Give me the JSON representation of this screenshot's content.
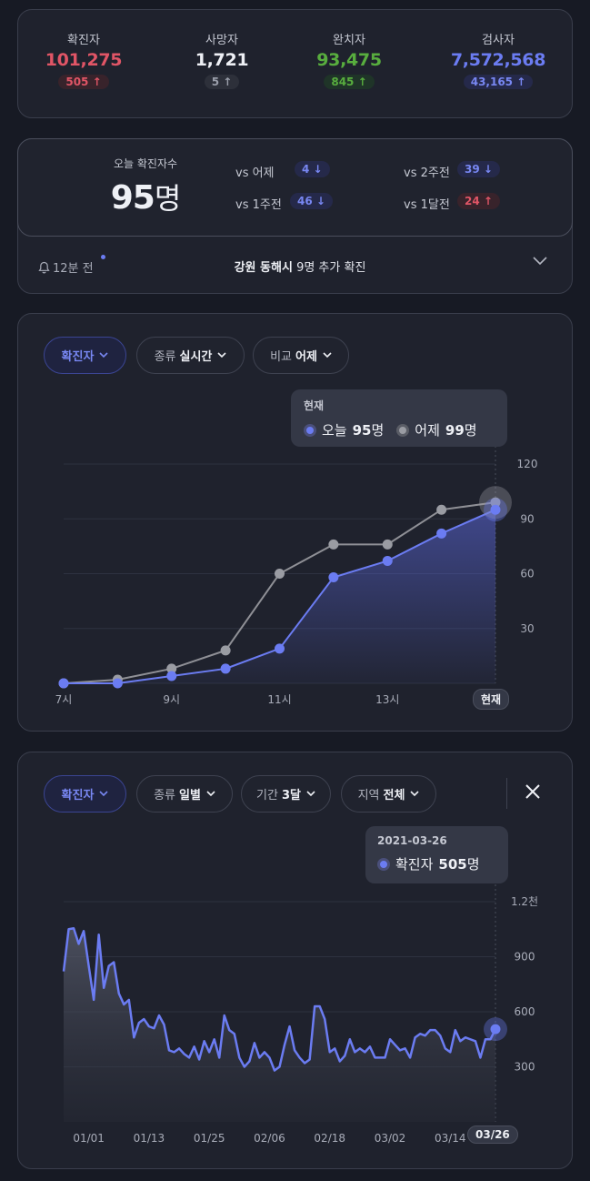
{
  "stats": [
    {
      "label": "확진자",
      "value": "101,275",
      "delta": "505",
      "tone": "red"
    },
    {
      "label": "사망자",
      "value": "1,721",
      "delta": "5",
      "tone": "gray"
    },
    {
      "label": "완치자",
      "value": "93,475",
      "delta": "845",
      "tone": "green"
    },
    {
      "label": "검사자",
      "value": "7,572,568",
      "delta": "43,165",
      "tone": "blue"
    }
  ],
  "today": {
    "label": "오늘 확진자수",
    "count": "95",
    "unit": "명",
    "comparisons": [
      {
        "label": "vs 어제",
        "value": "4",
        "direction": "down"
      },
      {
        "label": "vs 2주전",
        "value": "39",
        "direction": "down"
      },
      {
        "label": "vs 1주전",
        "value": "46",
        "direction": "down"
      },
      {
        "label": "vs 1달전",
        "value": "24",
        "direction": "up"
      }
    ],
    "news_time": "12분 전",
    "news_region": "강원 동해시",
    "news_text": "9명 추가 확진"
  },
  "hourly": {
    "filters": [
      {
        "prefix": "",
        "value": "확진자",
        "active": true
      },
      {
        "prefix": "종류",
        "value": "실시간",
        "active": false
      },
      {
        "prefix": "비교",
        "value": "어제",
        "active": false
      }
    ],
    "tooltip": {
      "title": "현재",
      "today_label": "오늘",
      "today_value": "95",
      "today_unit": "명",
      "yesterday_label": "어제",
      "yesterday_value": "99",
      "yesterday_unit": "명"
    },
    "current_label": "현재"
  },
  "daily": {
    "filters": [
      {
        "prefix": "",
        "value": "확진자",
        "active": true
      },
      {
        "prefix": "종류",
        "value": "일별",
        "active": false
      },
      {
        "prefix": "기간",
        "value": "3달",
        "active": false
      },
      {
        "prefix": "지역",
        "value": "전체",
        "active": false
      }
    ],
    "tooltip": {
      "title": "2021-03-26",
      "label": "확진자",
      "value": "505",
      "unit": "명"
    },
    "current_label": "03/26"
  },
  "chart_data": [
    {
      "type": "line",
      "x_ticks": [
        "7시",
        "9시",
        "11시",
        "13시"
      ],
      "x": [
        7,
        8,
        9,
        10,
        11,
        12,
        13,
        14,
        15
      ],
      "y_ticks": [
        "120",
        "90",
        "60",
        "30"
      ],
      "ylim": [
        0,
        120
      ],
      "series": [
        {
          "name": "오늘",
          "values": [
            0,
            0,
            4,
            8,
            19,
            58,
            67,
            82,
            95
          ]
        },
        {
          "name": "어제",
          "values": [
            0,
            2,
            8,
            18,
            60,
            76,
            76,
            95,
            99
          ]
        }
      ],
      "colors": {
        "today": "#6b7cf2",
        "yesterday": "#8f9096"
      }
    },
    {
      "type": "area",
      "x_ticks": [
        "01/01",
        "01/13",
        "01/25",
        "02/06",
        "02/18",
        "03/02",
        "03/14"
      ],
      "y_ticks": [
        "1.2천",
        "900",
        "600",
        "300"
      ],
      "ylim": [
        0,
        1200
      ],
      "series": [
        {
          "name": "확진자",
          "values": [
            820,
            1050,
            1055,
            970,
            1040,
            850,
            665,
            1020,
            730,
            850,
            870,
            700,
            640,
            665,
            460,
            540,
            560,
            520,
            510,
            580,
            530,
            390,
            380,
            400,
            370,
            350,
            410,
            340,
            440,
            380,
            450,
            350,
            580,
            500,
            480,
            350,
            300,
            330,
            430,
            350,
            380,
            350,
            280,
            300,
            420,
            520,
            390,
            350,
            320,
            340,
            630,
            630,
            560,
            380,
            400,
            330,
            360,
            450,
            380,
            400,
            380,
            410,
            350,
            350,
            350,
            450,
            420,
            390,
            400,
            350,
            460,
            480,
            470,
            500,
            500,
            470,
            400,
            380,
            500,
            440,
            460,
            450,
            440,
            350,
            450,
            450,
            505
          ]
        }
      ],
      "colors": {
        "line": "#6b7cf2"
      }
    }
  ]
}
